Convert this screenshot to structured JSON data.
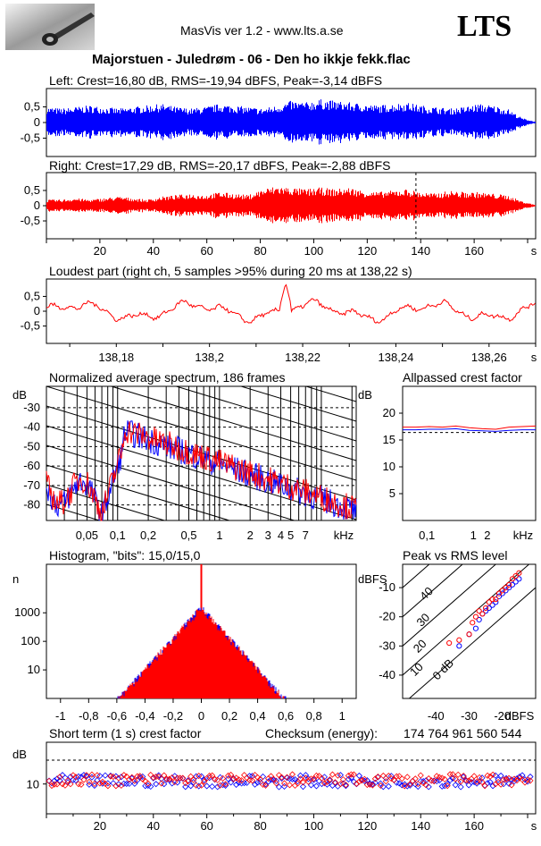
{
  "header": {
    "app_title": "MasVis ver 1.2 - www.lts.a.se",
    "logo_text": "LTS",
    "track_title": "Majorstuen - Juledrøm - 06 - Den ho ikkje fekk.flac"
  },
  "colors": {
    "left": "#0000ff",
    "right": "#ff0000",
    "axes": "#000000"
  },
  "chart_data": [
    {
      "id": "left",
      "type": "area",
      "title": "Left: Crest=16,80 dB, RMS=-19,94 dBFS, Peak=-3,14 dBFS",
      "ylim": [
        -1,
        1
      ],
      "yticks": [
        "0,5",
        "0",
        "-0,5"
      ],
      "xlim": [
        0,
        183
      ],
      "envelope": [
        0.5,
        0.45,
        0.5,
        0.55,
        0.5,
        0.45,
        0.5,
        0.55,
        0.6,
        0.5,
        0.45,
        0.5,
        0.6,
        0.55,
        0.5,
        0.45,
        0.55,
        0.7,
        0.65,
        0.75,
        0.7,
        0.65,
        0.6,
        0.55,
        0.6,
        0.65,
        0.55,
        0.5,
        0.45,
        0.5,
        0.6,
        0.55,
        0.45,
        0.15,
        0.02
      ],
      "series": [
        {
          "name": "Left",
          "color": "#0000ff"
        }
      ]
    },
    {
      "id": "right",
      "type": "area",
      "title": "Right: Crest=17,29 dB, RMS=-20,17 dBFS, Peak=-2,88 dBFS",
      "ylim": [
        -1,
        1
      ],
      "yticks": [
        "0,5",
        "0",
        "-0,5"
      ],
      "xlim": [
        0,
        183
      ],
      "x_unit": "s",
      "xticks": [
        20,
        40,
        60,
        80,
        100,
        120,
        140,
        160
      ],
      "marker_x": 138.22,
      "envelope": [
        0.2,
        0.2,
        0.25,
        0.2,
        0.25,
        0.3,
        0.25,
        0.2,
        0.3,
        0.35,
        0.4,
        0.35,
        0.45,
        0.4,
        0.35,
        0.55,
        0.65,
        0.6,
        0.55,
        0.6,
        0.55,
        0.6,
        0.5,
        0.45,
        0.5,
        0.55,
        0.45,
        0.4,
        0.5,
        0.45,
        0.45,
        0.4,
        0.35,
        0.15,
        0.02
      ],
      "series": [
        {
          "name": "Right",
          "color": "#ff0000"
        }
      ]
    },
    {
      "id": "loudest",
      "type": "line",
      "title": "Loudest part (right ch, 5 samples >95% during 20 ms at 138,22 s)",
      "ylim": [
        -1,
        1
      ],
      "yticks": [
        "0,5",
        "0",
        "-0,5"
      ],
      "xlim": [
        138.165,
        138.27
      ],
      "x_unit": "s",
      "xticks": [
        "138,18",
        "138,2",
        "138,22",
        "138,24",
        "138,26"
      ],
      "series": [
        {
          "name": "Right",
          "color": "#ff0000"
        }
      ]
    },
    {
      "id": "spectrum",
      "type": "line",
      "title": "Normalized average spectrum, 186 frames",
      "ylabel": "dB",
      "yticks": [
        "-30",
        "-40",
        "-50",
        "-60",
        "-70",
        "-80"
      ],
      "ylim": [
        -88,
        -19
      ],
      "xlog": true,
      "xlim_khz": [
        0.02,
        22
      ],
      "xticks": [
        "0,05",
        "0,1",
        "0,2",
        "0,5",
        "1",
        "2",
        "3",
        "4",
        "5",
        "7"
      ],
      "x_unit": "kHz",
      "series": [
        {
          "name": "Left",
          "color": "#0000ff"
        },
        {
          "name": "Right",
          "color": "#ff0000"
        }
      ]
    },
    {
      "id": "allpass",
      "type": "line",
      "title": "Allpassed crest factor",
      "ylabel": "dB",
      "yticks": [
        20,
        15,
        10,
        5
      ],
      "ylim": [
        0,
        25
      ],
      "xlog": true,
      "xlim_khz": [
        0.03,
        22
      ],
      "xticks": [
        "0,1",
        "1",
        "2"
      ],
      "x_unit": "kHz",
      "series": [
        {
          "name": "Left",
          "color": "#0000ff",
          "values": [
            16.9,
            16.9,
            17.0,
            17.0,
            17.1,
            16.8,
            16.7,
            16.6,
            16.8,
            16.9,
            16.9
          ]
        },
        {
          "name": "Right",
          "color": "#ff0000",
          "values": [
            17.4,
            17.4,
            17.5,
            17.4,
            17.6,
            17.3,
            17.1,
            17.0,
            17.4,
            17.5,
            17.6
          ]
        }
      ]
    },
    {
      "id": "histogram",
      "type": "line",
      "title": "Histogram, \"bits\": 15,0/15,0",
      "ylabel": "n",
      "ylog": true,
      "yticks": [
        "1000",
        "100",
        "10"
      ],
      "xlim": [
        -1.1,
        1.1
      ],
      "xticks": [
        "-1",
        "-0,8",
        "-0,6",
        "-0,4",
        "-0,2",
        "0",
        "0,2",
        "0,4",
        "0,6",
        "0,8",
        "1"
      ],
      "series": [
        {
          "name": "Left",
          "color": "#0000ff"
        },
        {
          "name": "Right",
          "color": "#ff0000"
        }
      ]
    },
    {
      "id": "peakrms",
      "type": "scatter",
      "title": "Peak vs RMS level",
      "ylabel": "dBFS",
      "yticks": [
        "-10",
        "-20",
        "-30",
        "-40"
      ],
      "ylim": [
        -48,
        -2
      ],
      "xlabel": "dBFS",
      "xticks": [
        "-40",
        "-30",
        "-20"
      ],
      "xlim": [
        -50,
        -10
      ],
      "diagonal_labels": [
        "40",
        "30",
        "20",
        "10",
        "0 dB"
      ],
      "series": [
        {
          "name": "Left",
          "color": "#0000ff",
          "x": [
            -27,
            -26,
            -25,
            -24,
            -23,
            -22,
            -21,
            -20,
            -19,
            -18,
            -17,
            -16,
            -15,
            -28,
            -30,
            -33
          ],
          "y": [
            -21,
            -19,
            -18,
            -17,
            -16,
            -15,
            -13,
            -12,
            -11,
            -10,
            -9,
            -8,
            -7,
            -24,
            -26,
            -30
          ]
        },
        {
          "name": "Right",
          "color": "#ff0000",
          "x": [
            -36,
            -33,
            -30,
            -29,
            -28,
            -27,
            -26,
            -25,
            -24,
            -23,
            -22,
            -21,
            -20,
            -19,
            -18,
            -17,
            -16,
            -15
          ],
          "y": [
            -29,
            -28,
            -26,
            -22,
            -20,
            -18,
            -19,
            -17,
            -15,
            -14,
            -14,
            -12,
            -11,
            -10,
            -9,
            -7,
            -6,
            -5
          ]
        }
      ]
    },
    {
      "id": "shortcrest",
      "type": "scatter",
      "title": "Short term (1 s) crest factor",
      "checksum_label": "Checksum (energy):",
      "checksum_value": "174 764 961 560 544",
      "ylabel": "dB",
      "yticks": [
        "10"
      ],
      "ylim": [
        0,
        24
      ],
      "xlim": [
        0,
        183
      ],
      "x_unit": "s",
      "xticks": [
        20,
        40,
        60,
        80,
        100,
        120,
        140,
        160
      ],
      "series": [
        {
          "name": "Left",
          "color": "#0000ff"
        },
        {
          "name": "Right",
          "color": "#ff0000"
        }
      ]
    }
  ]
}
